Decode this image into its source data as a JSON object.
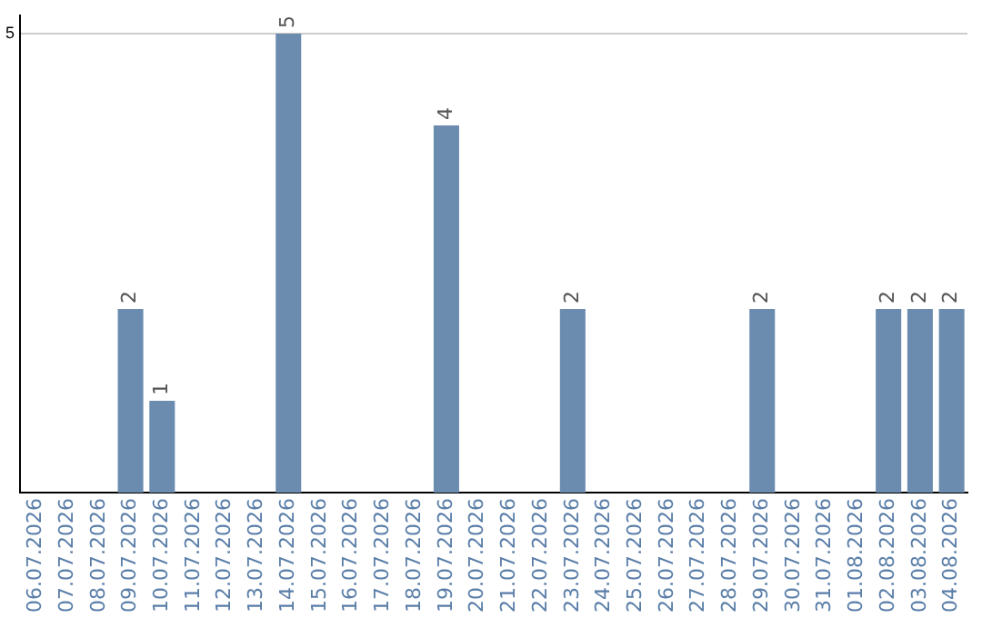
{
  "chart_data": {
    "type": "bar",
    "categories": [
      "06.07.2026",
      "07.07.2026",
      "08.07.2026",
      "09.07.2026",
      "10.07.2026",
      "11.07.2026",
      "12.07.2026",
      "13.07.2026",
      "14.07.2026",
      "15.07.2026",
      "16.07.2026",
      "17.07.2026",
      "18.07.2026",
      "19.07.2026",
      "20.07.2026",
      "21.07.2026",
      "22.07.2026",
      "23.07.2026",
      "24.07.2026",
      "25.07.2026",
      "26.07.2026",
      "27.07.2026",
      "28.07.2026",
      "29.07.2026",
      "30.07.2026",
      "31.07.2026",
      "01.08.2026",
      "02.08.2026",
      "03.08.2026",
      "04.08.2026"
    ],
    "values": [
      0,
      0,
      0,
      2,
      1,
      0,
      0,
      0,
      5,
      0,
      0,
      0,
      0,
      4,
      0,
      0,
      0,
      2,
      0,
      0,
      0,
      0,
      0,
      2,
      0,
      0,
      0,
      2,
      2,
      2
    ],
    "value_labels": [
      null,
      null,
      null,
      "2",
      "1",
      null,
      null,
      null,
      "5",
      null,
      null,
      null,
      null,
      "4",
      null,
      null,
      null,
      "2",
      null,
      null,
      null,
      null,
      null,
      "2",
      null,
      null,
      null,
      "2",
      "2",
      "2"
    ],
    "color": "#6b8cae",
    "ylim": [
      0,
      5.2
    ],
    "yticks": [
      5
    ],
    "grid": "y",
    "legend": false
  }
}
